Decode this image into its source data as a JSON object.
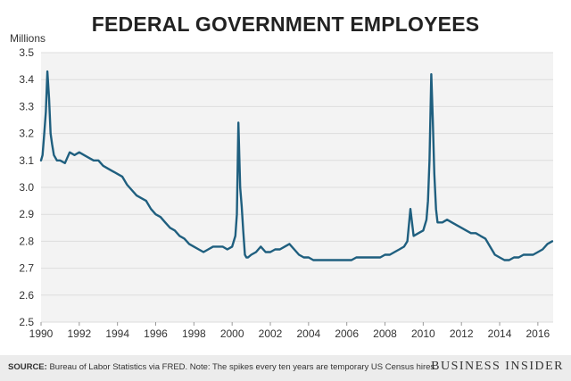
{
  "title": "FEDERAL GOVERNMENT EMPLOYEES",
  "footer": {
    "source_label": "SOURCE:",
    "source_text": "Bureau of Labor Statistics via FRED. Note: The spikes every ten years are temporary US Census hires.",
    "brand": "BUSINESS INSIDER"
  },
  "colors": {
    "line": "#1f5f7f",
    "grid": "#dddddd",
    "plot_bg": "#f3f3f3",
    "footer_bg": "#ececec"
  },
  "chart_data": {
    "type": "line",
    "title": "FEDERAL GOVERNMENT EMPLOYEES",
    "ylabel": "Millions",
    "xlabel": "",
    "xlim": [
      1990,
      2016.8
    ],
    "ylim": [
      2.5,
      3.5
    ],
    "x_ticks": [
      1990,
      1992,
      1994,
      1996,
      1998,
      2000,
      2002,
      2004,
      2006,
      2008,
      2010,
      2012,
      2014,
      2016
    ],
    "x_tick_labels": [
      "1990",
      "1992",
      "1994",
      "1996",
      "1998",
      "2000",
      "2002",
      "2004",
      "2006",
      "2008",
      "2010",
      "2012",
      "2014",
      "2016"
    ],
    "y_ticks": [
      2.5,
      2.6,
      2.7,
      2.8,
      2.9,
      3.0,
      3.1,
      3.2,
      3.3,
      3.4,
      3.5
    ],
    "y_tick_labels": [
      "2.5",
      "2.6",
      "2.7",
      "2.8",
      "2.9",
      "3.0",
      "3.1",
      "3.2",
      "3.3",
      "3.4",
      "3.5"
    ],
    "grid": true,
    "series": [
      {
        "name": "Federal government employees (millions)",
        "x": [
          1990.0,
          1990.08,
          1990.17,
          1990.25,
          1990.33,
          1990.42,
          1990.5,
          1990.58,
          1990.67,
          1990.75,
          1990.83,
          1991.0,
          1991.25,
          1991.5,
          1991.75,
          1992.0,
          1992.25,
          1992.5,
          1992.75,
          1993.0,
          1993.25,
          1993.5,
          1993.75,
          1994.0,
          1994.25,
          1994.5,
          1994.75,
          1995.0,
          1995.25,
          1995.5,
          1995.75,
          1996.0,
          1996.25,
          1996.5,
          1996.75,
          1997.0,
          1997.25,
          1997.5,
          1997.75,
          1998.0,
          1998.25,
          1998.5,
          1998.75,
          1999.0,
          1999.25,
          1999.5,
          1999.75,
          2000.0,
          2000.17,
          2000.25,
          2000.33,
          2000.42,
          2000.5,
          2000.58,
          2000.67,
          2000.75,
          2000.83,
          2001.0,
          2001.25,
          2001.5,
          2001.75,
          2002.0,
          2002.25,
          2002.5,
          2002.75,
          2003.0,
          2003.25,
          2003.5,
          2003.75,
          2004.0,
          2004.25,
          2004.5,
          2004.75,
          2005.0,
          2005.25,
          2005.5,
          2005.75,
          2006.0,
          2006.25,
          2006.5,
          2006.75,
          2007.0,
          2007.25,
          2007.5,
          2007.75,
          2008.0,
          2008.25,
          2008.5,
          2008.75,
          2009.0,
          2009.17,
          2009.25,
          2009.33,
          2009.5,
          2009.75,
          2010.0,
          2010.17,
          2010.25,
          2010.33,
          2010.42,
          2010.5,
          2010.58,
          2010.67,
          2010.75,
          2010.83,
          2011.0,
          2011.25,
          2011.5,
          2011.75,
          2012.0,
          2012.25,
          2012.5,
          2012.75,
          2013.0,
          2013.25,
          2013.5,
          2013.75,
          2014.0,
          2014.25,
          2014.5,
          2014.75,
          2015.0,
          2015.25,
          2015.5,
          2015.75,
          2016.0,
          2016.25,
          2016.5,
          2016.75
        ],
        "values": [
          3.1,
          3.12,
          3.2,
          3.28,
          3.43,
          3.33,
          3.2,
          3.16,
          3.12,
          3.11,
          3.1,
          3.1,
          3.09,
          3.13,
          3.12,
          3.13,
          3.12,
          3.11,
          3.1,
          3.1,
          3.08,
          3.07,
          3.06,
          3.05,
          3.04,
          3.01,
          2.99,
          2.97,
          2.96,
          2.95,
          2.92,
          2.9,
          2.89,
          2.87,
          2.85,
          2.84,
          2.82,
          2.81,
          2.79,
          2.78,
          2.77,
          2.76,
          2.77,
          2.78,
          2.78,
          2.78,
          2.77,
          2.78,
          2.82,
          2.9,
          3.24,
          3.0,
          2.93,
          2.84,
          2.75,
          2.74,
          2.74,
          2.75,
          2.76,
          2.78,
          2.76,
          2.76,
          2.77,
          2.77,
          2.78,
          2.79,
          2.77,
          2.75,
          2.74,
          2.74,
          2.73,
          2.73,
          2.73,
          2.73,
          2.73,
          2.73,
          2.73,
          2.73,
          2.73,
          2.74,
          2.74,
          2.74,
          2.74,
          2.74,
          2.74,
          2.75,
          2.75,
          2.76,
          2.77,
          2.78,
          2.8,
          2.86,
          2.92,
          2.82,
          2.83,
          2.84,
          2.88,
          2.95,
          3.1,
          3.42,
          3.25,
          3.05,
          2.92,
          2.87,
          2.87,
          2.87,
          2.88,
          2.87,
          2.86,
          2.85,
          2.84,
          2.83,
          2.83,
          2.82,
          2.81,
          2.78,
          2.75,
          2.74,
          2.73,
          2.73,
          2.74,
          2.74,
          2.75,
          2.75,
          2.75,
          2.76,
          2.77,
          2.79,
          2.8
        ]
      }
    ]
  }
}
